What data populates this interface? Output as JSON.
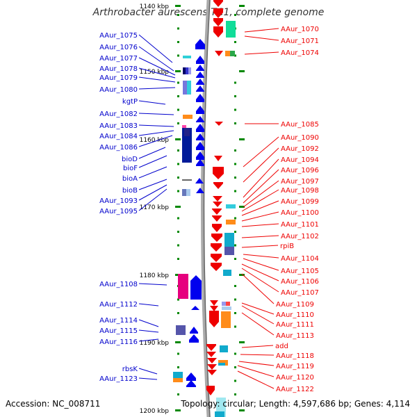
{
  "title": "Arthrobacter aurescens TC1, complete genome",
  "footer": {
    "accession": "Accession: NC_008711",
    "topology": "Topology: circular; Length: 4,597,686 bp; Genes: 4,114"
  },
  "scale_labels": [
    "1140 kbp",
    "1150 kbp",
    "1160 kbp",
    "1170 kbp",
    "1180 kbp",
    "1190 kbp",
    "1200 kbp"
  ],
  "left_labels": [
    "AAur_1075",
    "AAur_1076",
    "AAur_1077",
    "AAur_1078",
    "AAur_1079",
    "AAur_1080",
    "kgtP",
    "AAur_1082",
    "AAur_1083",
    "AAur_1084",
    "AAur_1086",
    "bioD",
    "bioF",
    "bioA",
    "bioB",
    "AAur_1093",
    "AAur_1095",
    "AAur_1108",
    "AAur_1112",
    "AAur_1114",
    "AAur_1115",
    "AAur_1116",
    "rbsK",
    "AAur_1123"
  ],
  "right_labels": [
    "AAur_1070",
    "AAur_1071",
    "AAur_1074",
    "AAur_1085",
    "AAur_1090",
    "AAur_1092",
    "AAur_1094",
    "AAur_1096",
    "AAur_1097",
    "AAur_1098",
    "AAur_1099",
    "AAur_1100",
    "AAur_1101",
    "AAur_1102",
    "rpiB",
    "AAur_1104",
    "AAur_1105",
    "AAur_1106",
    "AAur_1107",
    "AAur_1109",
    "AAur_1110",
    "AAur_1111",
    "AAur_1113",
    "add",
    "AAur_1118",
    "AAur_1119",
    "AAur_1120",
    "AAur_1122"
  ],
  "colors": {
    "forward_gene": "#0000ee",
    "reverse_gene": "#ee0000",
    "backbone": "#888888",
    "tick": "#008800",
    "label_forward": "#0000cc",
    "label_reverse": "#ee0000"
  }
}
